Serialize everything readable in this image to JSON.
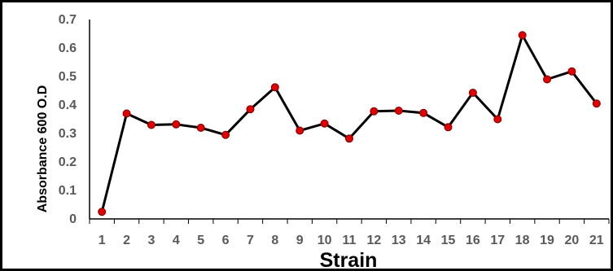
{
  "chart_data": {
    "type": "line",
    "title": "",
    "xlabel": "Strain",
    "ylabel": "Absorbance 600 O.D",
    "categories": [
      "1",
      "2",
      "3",
      "4",
      "5",
      "6",
      "7",
      "8",
      "9",
      "10",
      "11",
      "12",
      "13",
      "14",
      "15",
      "16",
      "17",
      "18",
      "19",
      "20",
      "21"
    ],
    "series": [
      {
        "values": [
          0.025,
          0.37,
          0.33,
          0.332,
          0.32,
          0.295,
          0.385,
          0.462,
          0.31,
          0.335,
          0.282,
          0.378,
          0.38,
          0.372,
          0.322,
          0.443,
          0.35,
          0.645,
          0.49,
          0.518,
          0.405
        ]
      }
    ],
    "ylim": [
      0,
      0.7
    ],
    "yticks": [
      "0",
      "0.1",
      "0.2",
      "0.3",
      "0.4",
      "0.5",
      "0.6",
      "0.7"
    ],
    "grid": false,
    "legend": "none",
    "colors": {
      "line": "#000000",
      "marker_fill": "#e00000",
      "marker_edge": "#7a0000",
      "tick_text": "#595959"
    }
  }
}
